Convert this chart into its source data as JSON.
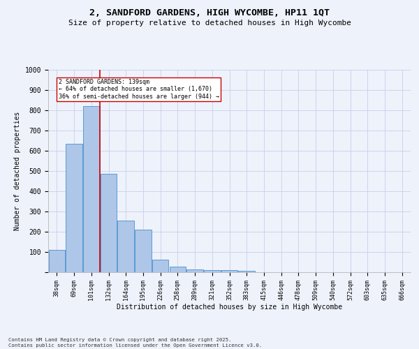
{
  "title_line1": "2, SANDFORD GARDENS, HIGH WYCOMBE, HP11 1QT",
  "title_line2": "Size of property relative to detached houses in High Wycombe",
  "xlabel": "Distribution of detached houses by size in High Wycombe",
  "ylabel": "Number of detached properties",
  "categories": [
    "38sqm",
    "69sqm",
    "101sqm",
    "132sqm",
    "164sqm",
    "195sqm",
    "226sqm",
    "258sqm",
    "289sqm",
    "321sqm",
    "352sqm",
    "383sqm",
    "415sqm",
    "446sqm",
    "478sqm",
    "509sqm",
    "540sqm",
    "572sqm",
    "603sqm",
    "635sqm",
    "666sqm"
  ],
  "values": [
    110,
    635,
    820,
    485,
    255,
    210,
    62,
    27,
    15,
    12,
    10,
    8,
    0,
    0,
    0,
    0,
    0,
    0,
    0,
    0,
    0
  ],
  "bar_color": "#aec6e8",
  "bar_edge_color": "#5b9bd5",
  "annotation_text": "2 SANDFORD GARDENS: 139sqm\n← 64% of detached houses are smaller (1,670)\n36% of semi-detached houses are larger (944) →",
  "annotation_box_color": "#ffffff",
  "annotation_box_edge": "#cc0000",
  "red_line_color": "#cc0000",
  "ylim": [
    0,
    1000
  ],
  "yticks": [
    0,
    100,
    200,
    300,
    400,
    500,
    600,
    700,
    800,
    900,
    1000
  ],
  "footer_line1": "Contains HM Land Registry data © Crown copyright and database right 2025.",
  "footer_line2": "Contains public sector information licensed under the Open Government Licence v3.0.",
  "background_color": "#eef2fb",
  "grid_color": "#c8d0e8"
}
